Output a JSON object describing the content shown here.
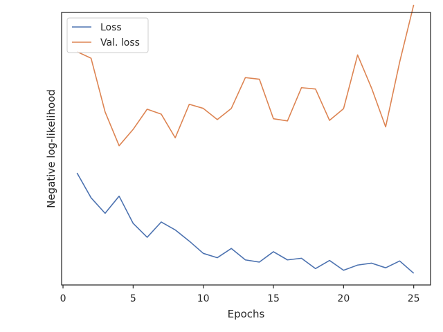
{
  "chart_data": {
    "type": "line",
    "title": "",
    "xlabel": "Epochs",
    "ylabel": "Negative log-likelihood",
    "xlim": [
      -0.1,
      26.2
    ],
    "ylim": [
      0,
      100
    ],
    "xticks": [
      0,
      5,
      10,
      15,
      20,
      25
    ],
    "xtick_labels": [
      "0",
      "5",
      "10",
      "15",
      "20",
      "25"
    ],
    "y_tick_labels_shown": false,
    "grid": false,
    "legend": {
      "position": "top-left"
    },
    "x": [
      1,
      2,
      3,
      4,
      5,
      6,
      7,
      8,
      9,
      10,
      11,
      12,
      13,
      14,
      15,
      16,
      17,
      18,
      19,
      20,
      21,
      22,
      23,
      24,
      25
    ],
    "series": [
      {
        "name": "Loss",
        "color": "#4c72b0",
        "values": [
          41.1,
          32.0,
          26.3,
          32.6,
          22.6,
          17.5,
          23.1,
          20.2,
          16.1,
          11.6,
          10.0,
          13.4,
          9.2,
          8.4,
          12.2,
          9.2,
          9.8,
          6.0,
          9.0,
          5.4,
          7.3,
          8.0,
          6.3,
          8.8,
          4.3
        ]
      },
      {
        "name": "Val. loss",
        "color": "#dd8452",
        "values": [
          85.6,
          83.2,
          63.5,
          51.1,
          57.1,
          64.5,
          62.7,
          54.0,
          66.3,
          64.8,
          60.7,
          64.8,
          76.1,
          75.5,
          61.0,
          60.2,
          72.4,
          71.9,
          60.4,
          64.7,
          84.4,
          72.2,
          58.0,
          81.8,
          102.8
        ]
      }
    ]
  }
}
